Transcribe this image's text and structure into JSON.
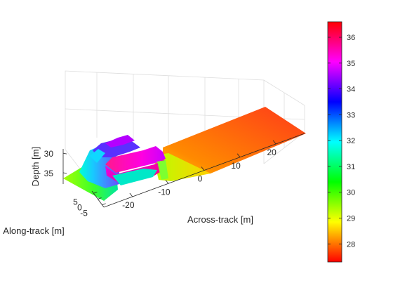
{
  "chart_data": {
    "type": "surface3d",
    "xlabel": "Across-track [m]",
    "ylabel": "Along-track [m]",
    "zlabel": "Depth [m]",
    "x_ticks": [
      "-20",
      "-10",
      "0",
      "10",
      "20"
    ],
    "y_ticks": [
      "5",
      "0",
      "-5"
    ],
    "z_ticks": [
      "30",
      "35"
    ],
    "zlim": [
      28,
      37
    ],
    "z_reversed": true,
    "grid": true,
    "colorbar": {
      "colormap": "hsv",
      "range": [
        27.3,
        36.6
      ],
      "ticks": [
        "28",
        "29",
        "30",
        "31",
        "32",
        "33",
        "34",
        "35",
        "36"
      ]
    },
    "regions": [
      {
        "x": [
          -28,
          -20
        ],
        "y": [
          -6,
          6
        ],
        "depth": 33.0
      },
      {
        "x": [
          -20,
          -17
        ],
        "y": [
          -6,
          6
        ],
        "depth": 32.5
      },
      {
        "x": [
          -17,
          -6
        ],
        "y": [
          -6,
          6
        ],
        "depth": 29.0
      },
      {
        "x": [
          -6,
          4
        ],
        "y": [
          -6,
          6
        ],
        "depth": 35.0
      },
      {
        "x": [
          4,
          28
        ],
        "y": [
          -6,
          6
        ],
        "depth": 36.0
      }
    ]
  }
}
